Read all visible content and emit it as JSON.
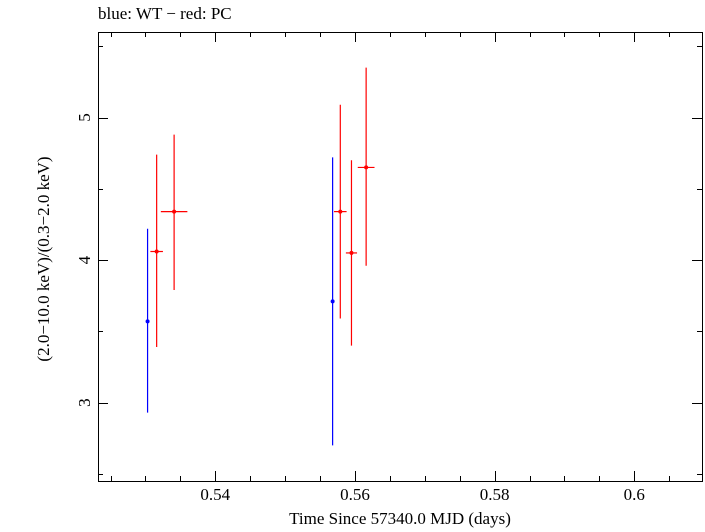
{
  "chart_data": {
    "type": "scatter",
    "title": "blue: WT − red: PC",
    "xlabel": "Time Since 57340.0 MJD (days)",
    "ylabel": "(2.0−10.0 keV)/(0.3−2.0 keV)",
    "xlim": [
      0.5232,
      0.6097
    ],
    "ylim": [
      2.45,
      5.6
    ],
    "xticks": [
      0.54,
      0.56,
      0.58,
      0.6
    ],
    "xtick_labels": [
      "0.54",
      "0.56",
      "0.58",
      "0.6"
    ],
    "yticks": [
      3,
      4,
      5
    ],
    "ytick_labels": [
      "3",
      "4",
      "5"
    ],
    "grid": false,
    "series": [
      {
        "color": "#0000ff",
        "points": [
          {
            "x": 0.5303,
            "y": 3.57,
            "xerr": 0.0,
            "ylo": 2.93,
            "yhi": 4.22
          },
          {
            "x": 0.5568,
            "y": 3.71,
            "xerr": 0.0,
            "ylo": 2.7,
            "yhi": 4.72
          }
        ]
      },
      {
        "color": "#ff0000",
        "points": [
          {
            "x": 0.5316,
            "y": 4.06,
            "xerr": 0.0009,
            "ylo": 3.39,
            "yhi": 4.74
          },
          {
            "x": 0.5341,
            "y": 4.34,
            "xerr": 0.0019,
            "ylo": 3.79,
            "yhi": 4.88
          },
          {
            "x": 0.5579,
            "y": 4.34,
            "xerr": 0.0009,
            "ylo": 3.59,
            "yhi": 5.09
          },
          {
            "x": 0.5595,
            "y": 4.05,
            "xerr": 0.0008,
            "ylo": 3.4,
            "yhi": 4.7
          },
          {
            "x": 0.5616,
            "y": 4.65,
            "xerr": 0.0012,
            "ylo": 3.96,
            "yhi": 5.35
          }
        ]
      }
    ]
  }
}
